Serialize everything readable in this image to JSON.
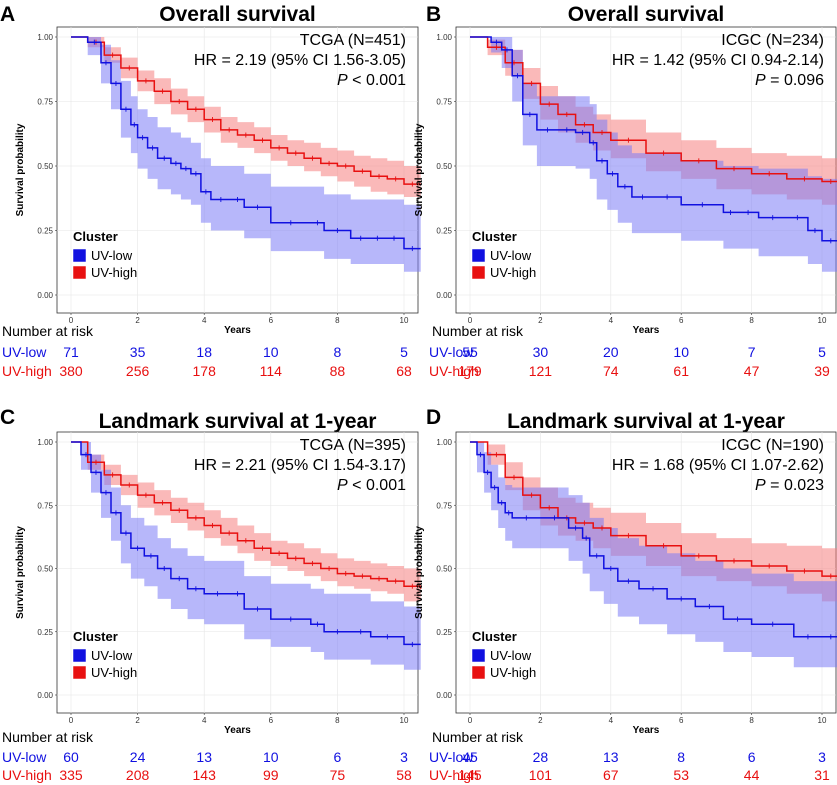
{
  "colors": {
    "low": "#1010e0",
    "high": "#e81010",
    "low_band": "#7b7bf5",
    "high_band": "#f58080"
  },
  "chart_data": [
    {
      "id": "A",
      "type": "line",
      "panel_label": "A",
      "title": "Overall survival",
      "xlabel": "Years",
      "ylabel": "Survival probability",
      "xlim": [
        0,
        10.5
      ],
      "ylim": [
        0,
        1
      ],
      "xticks": [
        "0",
        "2",
        "4",
        "6",
        "8",
        "10"
      ],
      "yticks": [
        "0.00",
        "0.25",
        "0.50",
        "0.75",
        "1.00"
      ],
      "cohort": "TCGA (N=451)",
      "hr": "HR = 2.19 (95% CI 1.56-3.05)",
      "p_label": "P",
      "p_value": " < 0.001",
      "legend_title": "Cluster",
      "series": [
        {
          "name": "UV-low",
          "x": [
            0,
            0.5,
            0.9,
            1.2,
            1.5,
            1.8,
            2.0,
            2.3,
            2.6,
            3.0,
            3.3,
            3.6,
            3.9,
            4.2,
            4.8,
            5.2,
            6.0,
            7.2,
            7.6,
            8.4,
            9.0,
            9.4,
            10.0,
            10.5
          ],
          "y": [
            1.0,
            0.98,
            0.9,
            0.82,
            0.72,
            0.66,
            0.61,
            0.57,
            0.53,
            0.51,
            0.49,
            0.47,
            0.4,
            0.37,
            0.37,
            0.34,
            0.28,
            0.28,
            0.25,
            0.22,
            0.22,
            0.22,
            0.18,
            0.18
          ],
          "lower": [
            1.0,
            0.93,
            0.82,
            0.72,
            0.61,
            0.55,
            0.49,
            0.45,
            0.41,
            0.39,
            0.37,
            0.35,
            0.28,
            0.25,
            0.25,
            0.22,
            0.17,
            0.17,
            0.14,
            0.12,
            0.12,
            0.12,
            0.09,
            0.09
          ],
          "upper": [
            1.0,
            1.0,
            0.97,
            0.91,
            0.83,
            0.77,
            0.72,
            0.69,
            0.65,
            0.63,
            0.61,
            0.59,
            0.53,
            0.5,
            0.5,
            0.47,
            0.42,
            0.42,
            0.39,
            0.37,
            0.37,
            0.37,
            0.35,
            0.35
          ]
        },
        {
          "name": "UV-high",
          "x": [
            0,
            0.5,
            1.0,
            1.5,
            2.0,
            2.5,
            3.0,
            3.5,
            4.0,
            4.5,
            5.0,
            5.5,
            6.0,
            6.5,
            7.0,
            7.5,
            8.0,
            8.5,
            9.0,
            9.5,
            10.0,
            10.5
          ],
          "y": [
            1.0,
            0.98,
            0.93,
            0.88,
            0.83,
            0.79,
            0.75,
            0.72,
            0.68,
            0.64,
            0.62,
            0.6,
            0.57,
            0.55,
            0.53,
            0.51,
            0.5,
            0.48,
            0.46,
            0.45,
            0.43,
            0.43
          ],
          "lower": [
            1.0,
            0.96,
            0.9,
            0.84,
            0.79,
            0.74,
            0.7,
            0.67,
            0.63,
            0.59,
            0.57,
            0.55,
            0.52,
            0.5,
            0.48,
            0.46,
            0.44,
            0.42,
            0.4,
            0.39,
            0.38,
            0.38
          ],
          "upper": [
            1.0,
            1.0,
            0.96,
            0.92,
            0.87,
            0.84,
            0.8,
            0.77,
            0.73,
            0.69,
            0.67,
            0.65,
            0.62,
            0.6,
            0.59,
            0.57,
            0.56,
            0.54,
            0.53,
            0.52,
            0.5,
            0.5
          ]
        }
      ],
      "risk_table": {
        "header": "Number at risk",
        "rows": [
          {
            "label": "UV-low",
            "values": [
              "71",
              "35",
              "18",
              "10",
              "8",
              "5"
            ]
          },
          {
            "label": "UV-high",
            "values": [
              "380",
              "256",
              "178",
              "114",
              "88",
              "68"
            ]
          }
        ]
      }
    },
    {
      "id": "B",
      "type": "line",
      "panel_label": "B",
      "title": "Overall survival",
      "xlabel": "Years",
      "ylabel": "Survival probability",
      "xlim": [
        0,
        10.5
      ],
      "ylim": [
        0,
        1
      ],
      "xticks": [
        "0",
        "2",
        "4",
        "6",
        "8",
        "10"
      ],
      "yticks": [
        "0.00",
        "0.25",
        "0.50",
        "0.75",
        "1.00"
      ],
      "cohort": "ICGC (N=234)",
      "hr": "HR = 1.42 (95% CI 0.94-2.14)",
      "p_label": "P",
      "p_value": " = 0.096",
      "legend_title": "Cluster",
      "series": [
        {
          "name": "UV-low",
          "x": [
            0,
            0.6,
            0.9,
            1.2,
            1.5,
            1.9,
            2.5,
            3.0,
            3.4,
            3.6,
            3.9,
            4.2,
            4.6,
            5.2,
            6.0,
            7.2,
            7.6,
            8.2,
            9.0,
            9.6,
            10.0,
            10.5
          ],
          "y": [
            1.0,
            0.98,
            0.95,
            0.85,
            0.7,
            0.64,
            0.64,
            0.63,
            0.59,
            0.52,
            0.47,
            0.42,
            0.38,
            0.38,
            0.35,
            0.32,
            0.32,
            0.3,
            0.3,
            0.25,
            0.21,
            0.21
          ],
          "lower": [
            1.0,
            0.94,
            0.88,
            0.75,
            0.58,
            0.5,
            0.5,
            0.49,
            0.45,
            0.37,
            0.33,
            0.28,
            0.24,
            0.24,
            0.21,
            0.18,
            0.18,
            0.15,
            0.15,
            0.12,
            0.09,
            0.09
          ],
          "upper": [
            1.0,
            1.0,
            1.0,
            0.95,
            0.82,
            0.77,
            0.77,
            0.77,
            0.74,
            0.68,
            0.63,
            0.58,
            0.55,
            0.55,
            0.52,
            0.5,
            0.5,
            0.49,
            0.49,
            0.46,
            0.45,
            0.45
          ]
        },
        {
          "name": "UV-high",
          "x": [
            0,
            0.5,
            1.0,
            1.5,
            2.0,
            2.5,
            3.0,
            3.5,
            4.0,
            5.0,
            6.0,
            7.0,
            8.0,
            9.0,
            10.0,
            10.5
          ],
          "y": [
            1.0,
            0.96,
            0.9,
            0.82,
            0.74,
            0.7,
            0.66,
            0.63,
            0.6,
            0.55,
            0.52,
            0.49,
            0.47,
            0.45,
            0.44,
            0.43
          ],
          "lower": [
            1.0,
            0.93,
            0.85,
            0.76,
            0.68,
            0.63,
            0.59,
            0.56,
            0.53,
            0.48,
            0.45,
            0.41,
            0.39,
            0.37,
            0.35,
            0.34
          ],
          "upper": [
            1.0,
            0.99,
            0.95,
            0.88,
            0.81,
            0.77,
            0.73,
            0.7,
            0.68,
            0.63,
            0.6,
            0.57,
            0.55,
            0.54,
            0.53,
            0.53
          ]
        }
      ],
      "risk_table": {
        "header": "Number at risk",
        "rows": [
          {
            "label": "UV-low",
            "values": [
              "55",
              "30",
              "20",
              "10",
              "7",
              "5"
            ]
          },
          {
            "label": "UV-high",
            "values": [
              "179",
              "121",
              "74",
              "61",
              "47",
              "39"
            ]
          }
        ]
      }
    },
    {
      "id": "C",
      "type": "line",
      "panel_label": "C",
      "title": "Landmark survival at 1-year",
      "xlabel": "Years",
      "ylabel": "Survival probability",
      "xlim": [
        0,
        10.5
      ],
      "ylim": [
        0,
        1
      ],
      "xticks": [
        "0",
        "2",
        "4",
        "6",
        "8",
        "10"
      ],
      "yticks": [
        "0.00",
        "0.25",
        "0.50",
        "0.75",
        "1.00"
      ],
      "cohort": "TCGA (N=395)",
      "hr": "HR = 2.21 (95% CI 1.54-3.17)",
      "p_label": "P",
      "p_value": " < 0.001",
      "legend_title": "Cluster",
      "series": [
        {
          "name": "UV-low",
          "x": [
            0,
            0.3,
            0.6,
            0.9,
            1.2,
            1.5,
            1.8,
            2.2,
            2.6,
            3.0,
            3.5,
            4.0,
            4.8,
            5.2,
            6.0,
            7.2,
            7.6,
            8.4,
            9.0,
            10.0,
            10.5
          ],
          "y": [
            1.0,
            0.95,
            0.88,
            0.8,
            0.72,
            0.64,
            0.58,
            0.55,
            0.5,
            0.46,
            0.42,
            0.4,
            0.4,
            0.34,
            0.3,
            0.28,
            0.25,
            0.25,
            0.23,
            0.2,
            0.2
          ],
          "lower": [
            1.0,
            0.89,
            0.8,
            0.7,
            0.61,
            0.52,
            0.46,
            0.43,
            0.38,
            0.34,
            0.3,
            0.28,
            0.28,
            0.22,
            0.19,
            0.17,
            0.14,
            0.14,
            0.12,
            0.1,
            0.1
          ],
          "upper": [
            1.0,
            1.0,
            0.95,
            0.89,
            0.82,
            0.75,
            0.7,
            0.67,
            0.62,
            0.58,
            0.55,
            0.53,
            0.53,
            0.47,
            0.44,
            0.42,
            0.4,
            0.4,
            0.37,
            0.35,
            0.35
          ]
        },
        {
          "name": "UV-high",
          "x": [
            0,
            0.5,
            1.0,
            1.5,
            2.0,
            2.5,
            3.0,
            3.5,
            4.0,
            4.5,
            5.0,
            5.5,
            6.0,
            6.5,
            7.0,
            7.5,
            8.0,
            8.5,
            9.0,
            9.5,
            10.0,
            10.5
          ],
          "y": [
            1.0,
            0.92,
            0.87,
            0.83,
            0.79,
            0.76,
            0.73,
            0.7,
            0.67,
            0.64,
            0.61,
            0.58,
            0.56,
            0.54,
            0.52,
            0.5,
            0.48,
            0.47,
            0.46,
            0.45,
            0.43,
            0.42
          ],
          "lower": [
            1.0,
            0.89,
            0.83,
            0.79,
            0.74,
            0.71,
            0.68,
            0.65,
            0.62,
            0.59,
            0.56,
            0.53,
            0.51,
            0.49,
            0.47,
            0.45,
            0.43,
            0.42,
            0.41,
            0.4,
            0.37,
            0.36
          ],
          "upper": [
            1.0,
            0.95,
            0.91,
            0.87,
            0.84,
            0.81,
            0.78,
            0.76,
            0.73,
            0.7,
            0.67,
            0.64,
            0.61,
            0.6,
            0.58,
            0.56,
            0.54,
            0.53,
            0.52,
            0.51,
            0.5,
            0.49
          ]
        }
      ],
      "risk_table": {
        "header": "Number at risk",
        "rows": [
          {
            "label": "UV-low",
            "values": [
              "60",
              "24",
              "13",
              "10",
              "6",
              "3"
            ]
          },
          {
            "label": "UV-high",
            "values": [
              "335",
              "208",
              "143",
              "99",
              "75",
              "58"
            ]
          }
        ]
      }
    },
    {
      "id": "D",
      "type": "line",
      "panel_label": "D",
      "title": "Landmark survival at 1-year",
      "xlabel": "Years",
      "ylabel": "Survival probability",
      "xlim": [
        0,
        10.5
      ],
      "ylim": [
        0,
        1
      ],
      "xticks": [
        "0",
        "2",
        "4",
        "6",
        "8",
        "10"
      ],
      "yticks": [
        "0.00",
        "0.25",
        "0.50",
        "0.75",
        "1.00"
      ],
      "cohort": "ICGC (N=190)",
      "hr": "HR = 1.68 (95% CI 1.07-2.62)",
      "p_label": "P",
      "p_value": " = 0.023",
      "legend_title": "Cluster",
      "series": [
        {
          "name": "UV-low",
          "x": [
            0,
            0.2,
            0.4,
            0.6,
            0.8,
            1.0,
            1.2,
            2.0,
            2.8,
            3.2,
            3.4,
            3.8,
            4.2,
            4.8,
            5.6,
            6.4,
            7.2,
            8.0,
            9.2,
            10.0,
            10.5
          ],
          "y": [
            1.0,
            0.95,
            0.88,
            0.82,
            0.76,
            0.72,
            0.7,
            0.7,
            0.66,
            0.62,
            0.55,
            0.5,
            0.45,
            0.42,
            0.38,
            0.35,
            0.3,
            0.28,
            0.23,
            0.23,
            0.23
          ],
          "lower": [
            1.0,
            0.88,
            0.8,
            0.73,
            0.66,
            0.61,
            0.58,
            0.58,
            0.53,
            0.48,
            0.41,
            0.36,
            0.31,
            0.28,
            0.24,
            0.21,
            0.17,
            0.15,
            0.11,
            0.11,
            0.11
          ],
          "upper": [
            1.0,
            1.0,
            0.96,
            0.91,
            0.86,
            0.83,
            0.82,
            0.82,
            0.79,
            0.76,
            0.7,
            0.66,
            0.62,
            0.59,
            0.56,
            0.53,
            0.5,
            0.48,
            0.45,
            0.45,
            0.45
          ]
        },
        {
          "name": "UV-high",
          "x": [
            0,
            0.5,
            1.0,
            1.5,
            2.0,
            2.5,
            3.0,
            3.5,
            4.0,
            5.0,
            6.0,
            7.0,
            8.0,
            9.0,
            10.0,
            10.5
          ],
          "y": [
            1.0,
            0.95,
            0.86,
            0.79,
            0.74,
            0.7,
            0.68,
            0.66,
            0.63,
            0.59,
            0.55,
            0.53,
            0.51,
            0.49,
            0.47,
            0.44
          ],
          "lower": [
            1.0,
            0.91,
            0.81,
            0.73,
            0.67,
            0.63,
            0.61,
            0.58,
            0.55,
            0.51,
            0.47,
            0.45,
            0.43,
            0.4,
            0.37,
            0.35
          ],
          "upper": [
            1.0,
            0.99,
            0.92,
            0.86,
            0.82,
            0.78,
            0.76,
            0.74,
            0.72,
            0.68,
            0.64,
            0.62,
            0.6,
            0.59,
            0.58,
            0.56
          ]
        }
      ],
      "risk_table": {
        "header": "Number at risk",
        "rows": [
          {
            "label": "UV-low",
            "values": [
              "45",
              "28",
              "13",
              "8",
              "6",
              "3"
            ]
          },
          {
            "label": "UV-high",
            "values": [
              "145",
              "101",
              "67",
              "53",
              "44",
              "31"
            ]
          }
        ]
      }
    }
  ]
}
